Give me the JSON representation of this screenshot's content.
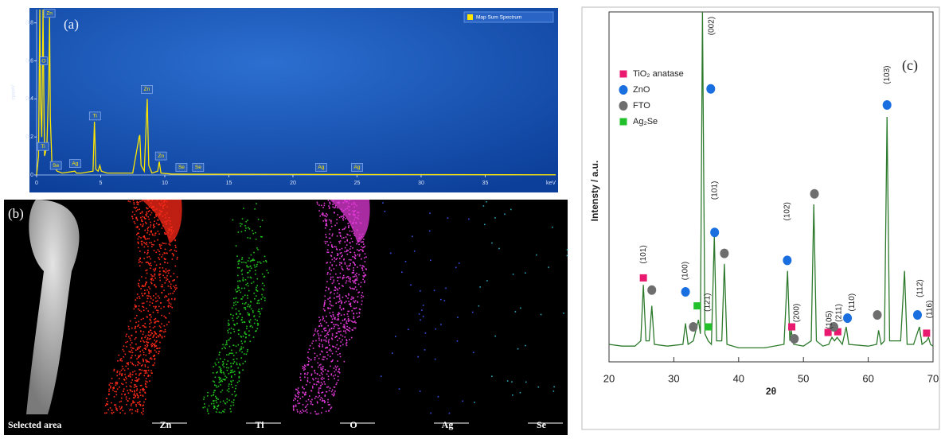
{
  "chart_data": [
    {
      "type": "line",
      "panel_label": "(a)",
      "xlabel": "keV",
      "ylabel": "cps/eV",
      "x": [
        0,
        0.15,
        0.25,
        0.3,
        0.4,
        0.5,
        0.55,
        0.62,
        0.8,
        0.95,
        1.01,
        1.07,
        1.2,
        1.4,
        1.6,
        2.0,
        2.98,
        3.1,
        3.5,
        4.4,
        4.51,
        4.62,
        4.8,
        4.93,
        5.05,
        5.5,
        7.5,
        8.0,
        8.05,
        8.15,
        8.4,
        8.63,
        8.75,
        9.0,
        9.45,
        9.57,
        9.7,
        10.5,
        12,
        20,
        30,
        40.5
      ],
      "series": [
        {
          "name": "Map Sum Spectrum",
          "color": "#ffe600",
          "values": [
            0,
            0.1,
            0.87,
            0.4,
            0.2,
            0.87,
            0.5,
            0.1,
            0.15,
            0.5,
            0.83,
            0.3,
            0.05,
            0.04,
            0.02,
            0.01,
            0.02,
            0.01,
            0.01,
            0.02,
            0.28,
            0.03,
            0.02,
            0.05,
            0.02,
            0.01,
            0.01,
            0.2,
            0.21,
            0.05,
            0.02,
            0.4,
            0.05,
            0.01,
            0.02,
            0.07,
            0.01,
            0.005,
            0.004,
            0.003,
            0.002,
            0.001
          ]
        }
      ],
      "xlim": [
        0,
        40.5
      ],
      "ylim": [
        0,
        0.87
      ],
      "xticks": [
        0,
        5,
        10,
        15,
        20,
        25,
        30,
        35
      ],
      "yticks": [
        0,
        0.2,
        0.4,
        0.6,
        0.8
      ],
      "legend": "upper right",
      "annotations": [
        {
          "text": "Zn",
          "x": 1.0,
          "y": 0.85
        },
        {
          "text": "O",
          "x": 0.55,
          "y": 0.6
        },
        {
          "text": "Ti",
          "x": 0.5,
          "y": 0.15
        },
        {
          "text": "Se",
          "x": 1.5,
          "y": 0.05
        },
        {
          "text": "Ag",
          "x": 3.0,
          "y": 0.06
        },
        {
          "text": "Ti",
          "x": 4.55,
          "y": 0.31
        },
        {
          "text": "Zn",
          "x": 8.6,
          "y": 0.45
        },
        {
          "text": "Zn",
          "x": 9.7,
          "y": 0.1
        },
        {
          "text": "Se",
          "x": 11.3,
          "y": 0.04
        },
        {
          "text": "Se",
          "x": 12.6,
          "y": 0.04
        },
        {
          "text": "Ag",
          "x": 22.2,
          "y": 0.04
        },
        {
          "text": "Ag",
          "x": 25.0,
          "y": 0.04
        }
      ]
    },
    {
      "type": "line",
      "panel_label": "(c)",
      "xlabel": "2θ",
      "ylabel": "Intensty / a.u.",
      "color": "#2d7a2d",
      "x": [
        20,
        22,
        24,
        24.9,
        25.3,
        25.7,
        26.2,
        26.6,
        27,
        29,
        31.4,
        31.8,
        32.2,
        33,
        33.8,
        34.1,
        34.42,
        34.8,
        35.3,
        35.8,
        36.25,
        36.6,
        37.4,
        37.8,
        38.2,
        40,
        44,
        47,
        47.55,
        47.9,
        48.1,
        48.5,
        50,
        51.2,
        51.6,
        52,
        53,
        53.9,
        54.4,
        54.8,
        55.2,
        56,
        56.6,
        57,
        60,
        61.3,
        61.6,
        62,
        62.5,
        62.9,
        63.3,
        65,
        65.6,
        66,
        67,
        67.9,
        68.3,
        69,
        69.3,
        69.6,
        70
      ],
      "values": [
        5,
        4.5,
        4.5,
        6,
        22,
        6,
        6,
        16,
        5,
        4.5,
        5,
        11,
        5,
        6,
        12,
        8,
        100,
        8,
        6,
        5,
        36,
        6,
        6,
        28,
        5,
        4,
        4,
        5,
        26,
        6,
        9,
        5,
        4.5,
        6,
        45,
        6,
        4.5,
        5,
        7,
        6,
        7,
        5,
        10,
        5,
        4.5,
        5,
        9,
        5,
        6,
        70,
        6,
        6,
        26,
        5,
        5,
        10,
        5,
        6,
        7,
        5,
        4.5
      ],
      "xlim": [
        20,
        70
      ],
      "ylim": [
        0,
        100
      ],
      "xticks": [
        20,
        30,
        40,
        50,
        60,
        70
      ],
      "legend": "upper left",
      "markers": [
        {
          "name": "TiO₂ anatase",
          "color": "#e8196e",
          "shape": "square",
          "x": [
            25.3,
            48.2,
            53.8,
            55.3,
            69.0
          ],
          "y": [
            24,
            10,
            8.4,
            8.6,
            8.2
          ]
        },
        {
          "name": "ZnO",
          "color": "#1a6fe0",
          "shape": "circle",
          "x": [
            31.8,
            35.7,
            36.3,
            47.5,
            56.8,
            62.9,
            67.6
          ],
          "y": [
            20,
            78,
            37,
            29,
            12.5,
            73.4,
            13.4
          ]
        },
        {
          "name": "FTO",
          "color": "#6e6e6e",
          "shape": "circle",
          "x": [
            26.6,
            33.0,
            37.8,
            48.6,
            51.7,
            54.7,
            61.4
          ],
          "y": [
            20.5,
            10,
            31,
            6.6,
            48,
            10,
            13.4
          ]
        },
        {
          "name": "Ag₂Se",
          "color": "#22c02a",
          "shape": "square",
          "x": [
            33.6,
            35.3
          ],
          "y": [
            16,
            10
          ]
        }
      ],
      "annotations": [
        {
          "text": "(101)",
          "x": 25.3,
          "y": 30.7
        },
        {
          "text": "(100)",
          "x": 31.8,
          "y": 26
        },
        {
          "text": "(002)",
          "x": 35.8,
          "y": 96
        },
        {
          "text": "(101)",
          "x": 36.3,
          "y": 49
        },
        {
          "text": "(102)",
          "x": 47.5,
          "y": 43
        },
        {
          "text": "(200)",
          "x": 49.0,
          "y": 14
        },
        {
          "text": "(121)",
          "x": 35.2,
          "y": 17
        },
        {
          "text": "(105)",
          "x": 54.0,
          "y": 12
        },
        {
          "text": "(211)",
          "x": 55.5,
          "y": 14
        },
        {
          "text": "(110)",
          "x": 57.5,
          "y": 17
        },
        {
          "text": "(103)",
          "x": 62.9,
          "y": 82
        },
        {
          "text": "(112)",
          "x": 68.0,
          "y": 21
        },
        {
          "text": "(116)",
          "x": 69.5,
          "y": 15
        }
      ]
    }
  ],
  "maps": {
    "label": "(b)",
    "tiles": [
      "Selected area",
      "Zn",
      "Ti",
      "O",
      "Ag",
      "Se"
    ]
  }
}
